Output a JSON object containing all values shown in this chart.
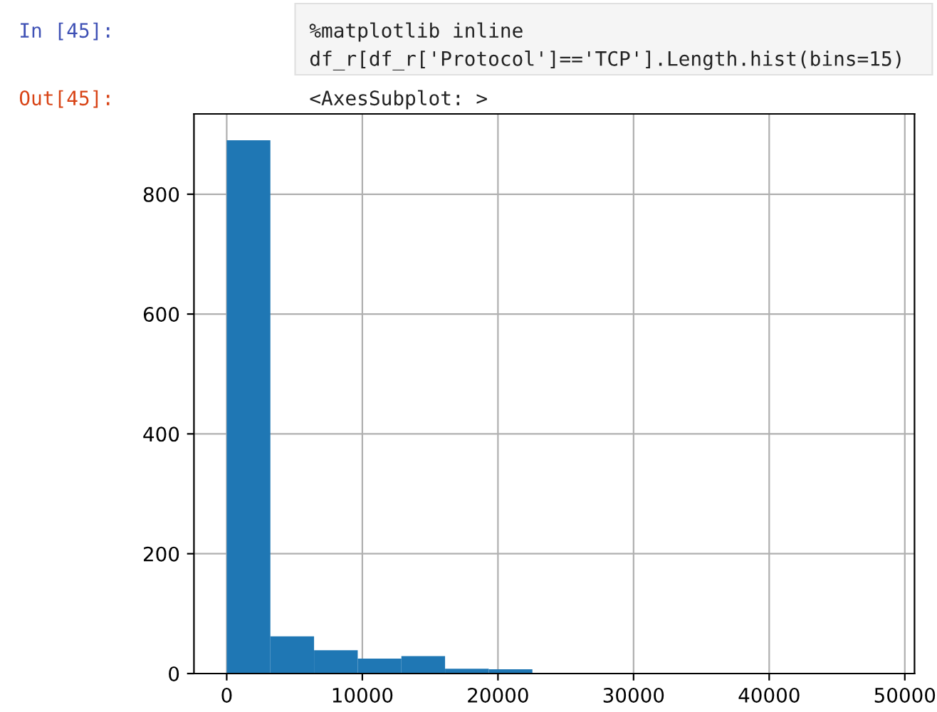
{
  "chart_data": {
    "type": "histogram",
    "bins": [
      0,
      3220,
      6440,
      9660,
      12880,
      16100,
      19320,
      22540,
      25760,
      28980,
      32200,
      35420,
      38640,
      41860,
      45080,
      48300
    ],
    "values": [
      890,
      62,
      39,
      25,
      29,
      8,
      7,
      0,
      0,
      0,
      0,
      0,
      0,
      0,
      0
    ],
    "color": "#1f77b4",
    "xlim": [
      -2415,
      50715
    ],
    "xticks": [
      0,
      10000,
      20000,
      30000,
      40000,
      50000
    ],
    "ylim": [
      0,
      934
    ],
    "yticks": [
      0,
      200,
      400,
      600,
      800
    ],
    "grid": true,
    "annotations": [
      "In [45]:",
      "%matplotlib inline",
      "df_r[df_r['Protocol']=='TCP'].Length.hist(bins=15)",
      "Out[45]:",
      "<AxesSubplot: >"
    ]
  }
}
